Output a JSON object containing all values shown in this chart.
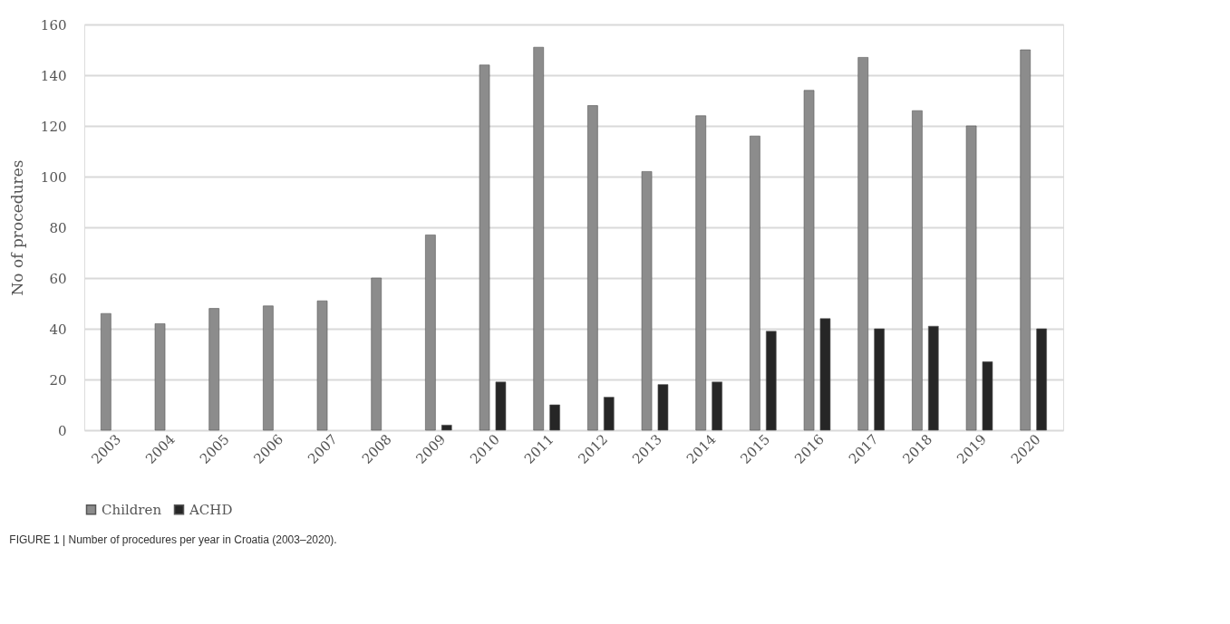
{
  "chart_data": {
    "type": "bar",
    "ylabel": "No of procedures",
    "categories": [
      "2003",
      "2004",
      "2005",
      "2006",
      "2007",
      "2008",
      "2009",
      "2010",
      "2011",
      "2012",
      "2013",
      "2014",
      "2015",
      "2016",
      "2017",
      "2018",
      "2019",
      "2020"
    ],
    "series": [
      {
        "name": "Children",
        "color": "#8c8c8c",
        "values": [
          46,
          42,
          48,
          49,
          51,
          60,
          77,
          144,
          151,
          128,
          102,
          124,
          116,
          134,
          147,
          126,
          120,
          150
        ]
      },
      {
        "name": "ACHD",
        "color": "#262626",
        "values": [
          null,
          null,
          null,
          null,
          null,
          null,
          2,
          19,
          10,
          13,
          18,
          19,
          39,
          44,
          40,
          41,
          27,
          40
        ]
      }
    ],
    "ylim": [
      0,
      160
    ],
    "yticks": [
      0,
      20,
      40,
      60,
      80,
      100,
      120,
      140,
      160
    ],
    "grid": "y",
    "legend": "bottom",
    "annotations": [
      "FIGURE 1 | Number of procedures per year in Croatia (2003–2020)."
    ]
  }
}
